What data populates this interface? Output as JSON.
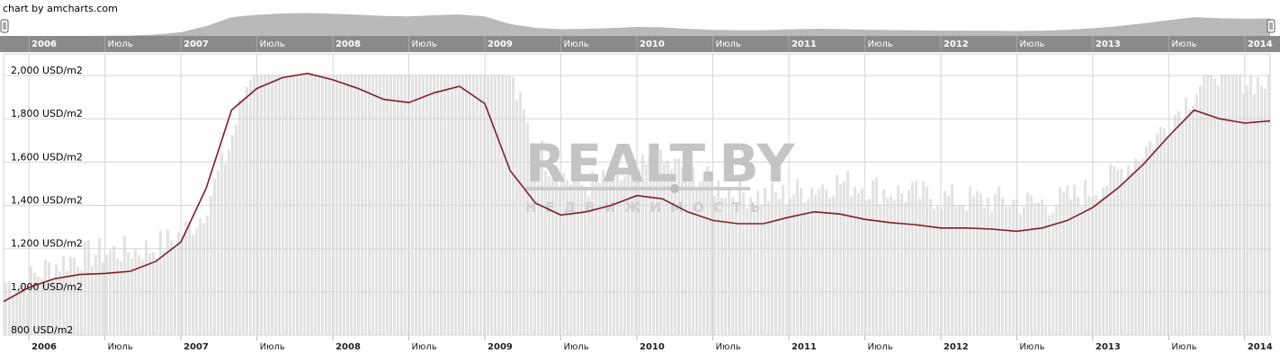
{
  "credit": "chart by amcharts.com",
  "watermark": {
    "main": "REALT.BY",
    "sub": "НЕДВИЖИМОСТЬ"
  },
  "colors": {
    "line": "#7a1f2e",
    "volume": "#e3e3e3",
    "scrollbar_bg": "#8a8a8a",
    "scrollbar_fill": "#b9b9b9",
    "grid": "#d6d6d6"
  },
  "x_ticks": [
    {
      "label": "2006",
      "date": "2006-01",
      "year": true
    },
    {
      "label": "Июль",
      "date": "2006-07",
      "year": false
    },
    {
      "label": "2007",
      "date": "2007-01",
      "year": true
    },
    {
      "label": "Июль",
      "date": "2007-07",
      "year": false
    },
    {
      "label": "2008",
      "date": "2008-01",
      "year": true
    },
    {
      "label": "Июль",
      "date": "2008-07",
      "year": false
    },
    {
      "label": "2009",
      "date": "2009-01",
      "year": true
    },
    {
      "label": "Июль",
      "date": "2009-07",
      "year": false
    },
    {
      "label": "2010",
      "date": "2010-01",
      "year": true
    },
    {
      "label": "Июль",
      "date": "2010-07",
      "year": false
    },
    {
      "label": "2011",
      "date": "2011-01",
      "year": true
    },
    {
      "label": "Июль",
      "date": "2011-07",
      "year": false
    },
    {
      "label": "2012",
      "date": "2012-01",
      "year": true
    },
    {
      "label": "Июль",
      "date": "2012-07",
      "year": false
    },
    {
      "label": "2013",
      "date": "2013-01",
      "year": true
    },
    {
      "label": "Июль",
      "date": "2013-07",
      "year": false
    },
    {
      "label": "2014",
      "date": "2014-01",
      "year": true
    }
  ],
  "chart_data": {
    "type": "line",
    "x_range": [
      "2005-11",
      "2014-03"
    ],
    "ylim": [
      800,
      2100
    ],
    "yticks": [
      {
        "value": 800,
        "label": "800 USD/m2"
      },
      {
        "value": 1000,
        "label": "1,000 USD/m2"
      },
      {
        "value": 1200,
        "label": "1,200 USD/m2"
      },
      {
        "value": 1400,
        "label": "1,400 USD/m2"
      },
      {
        "value": 1600,
        "label": "1,600 USD/m2"
      },
      {
        "value": 1800,
        "label": "1,800 USD/m2"
      },
      {
        "value": 2000,
        "label": "2,000 USD/m2"
      }
    ],
    "grid": true,
    "series": [
      {
        "x": [
          "2005-11",
          "2006-01",
          "2006-03",
          "2006-05",
          "2006-07",
          "2006-09",
          "2006-11",
          "2007-01",
          "2007-03",
          "2007-05",
          "2007-07",
          "2007-09",
          "2007-11",
          "2008-01",
          "2008-03",
          "2008-05",
          "2008-07",
          "2008-09",
          "2008-11",
          "2009-01",
          "2009-03",
          "2009-05",
          "2009-07",
          "2009-09",
          "2009-11",
          "2010-01",
          "2010-03",
          "2010-05",
          "2010-07",
          "2010-09",
          "2010-11",
          "2011-01",
          "2011-03",
          "2011-05",
          "2011-07",
          "2011-09",
          "2011-11",
          "2012-01",
          "2012-03",
          "2012-05",
          "2012-07",
          "2012-09",
          "2012-11",
          "2013-01",
          "2013-03",
          "2013-05",
          "2013-07",
          "2013-09",
          "2013-11",
          "2014-01",
          "2014-03"
        ],
        "y": [
          955,
          1020,
          1060,
          1080,
          1085,
          1095,
          1140,
          1230,
          1480,
          1840,
          1940,
          1990,
          2010,
          1980,
          1940,
          1890,
          1875,
          1920,
          1950,
          1870,
          1560,
          1410,
          1355,
          1370,
          1400,
          1445,
          1430,
          1370,
          1330,
          1315,
          1315,
          1345,
          1370,
          1360,
          1335,
          1320,
          1310,
          1295,
          1295,
          1290,
          1280,
          1295,
          1330,
          1390,
          1480,
          1590,
          1720,
          1840,
          1800,
          1780,
          1790
        ]
      }
    ]
  }
}
